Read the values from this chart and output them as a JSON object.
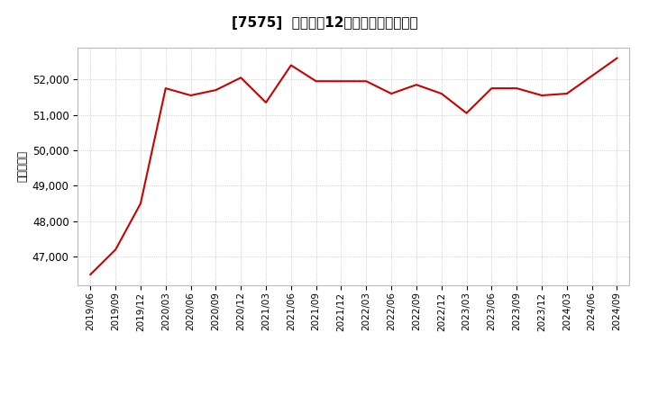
{
  "title": "[7575]  売上高の12か月移動合計の推移",
  "ylabel": "（百万円）",
  "line_color": "#cc0000",
  "background_color": "#ffffff",
  "plot_bg_color": "#ffffff",
  "grid_color": "#b0b0b0",
  "dates": [
    "2019/06",
    "2019/09",
    "2019/12",
    "2020/03",
    "2020/06",
    "2020/09",
    "2020/12",
    "2021/03",
    "2021/06",
    "2021/09",
    "2021/12",
    "2022/03",
    "2022/06",
    "2022/09",
    "2022/12",
    "2023/03",
    "2023/06",
    "2023/09",
    "2023/12",
    "2024/03",
    "2024/06",
    "2024/09"
  ],
  "values": [
    46500,
    47200,
    48500,
    51750,
    51550,
    51700,
    52050,
    51350,
    52400,
    51950,
    51950,
    51950,
    51600,
    51850,
    51600,
    51050,
    51750,
    51750,
    51550,
    51600,
    52100,
    52600
  ],
  "yticks": [
    47000,
    48000,
    49000,
    50000,
    51000,
    52000
  ],
  "ylim": [
    46200,
    52900
  ],
  "xtick_labels": [
    "2019/06",
    "2019/09",
    "2019/12",
    "2020/03",
    "2020/06",
    "2020/09",
    "2020/12",
    "2021/03",
    "2021/06",
    "2021/09",
    "2021/12",
    "2022/03",
    "2022/06",
    "2022/09",
    "2022/12",
    "2023/03",
    "2023/06",
    "2023/09",
    "2023/12",
    "2024/03",
    "2024/06",
    "2024/09"
  ]
}
